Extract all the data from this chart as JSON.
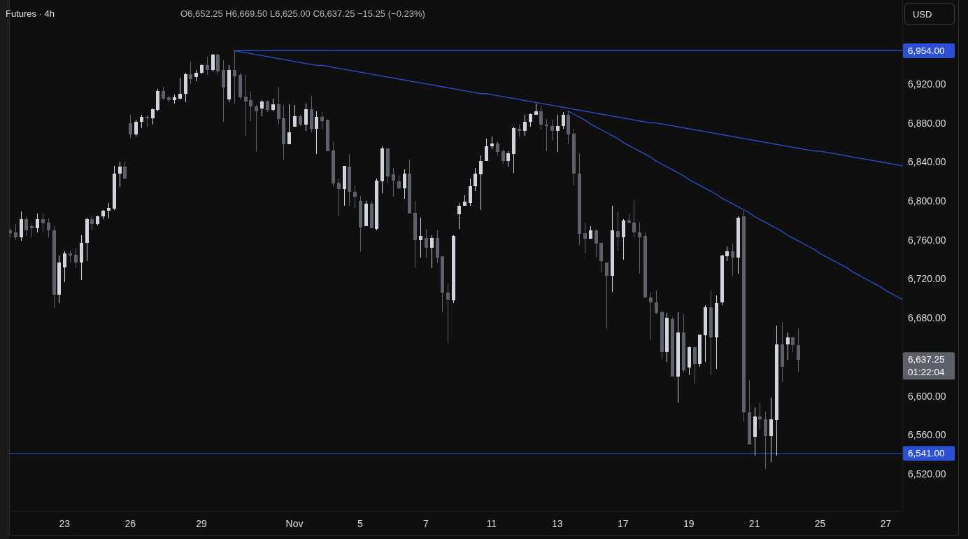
{
  "chart_data": {
    "type": "candlestick",
    "title": "Futures · 4h",
    "categories": [
      null,
      null,
      null,
      null,
      null,
      null,
      null,
      null,
      null,
      null,
      "23",
      null,
      null,
      null,
      null,
      null,
      null,
      null,
      null,
      null,
      null,
      null,
      "26",
      null,
      null,
      null,
      null,
      null,
      null,
      null,
      null,
      null,
      null,
      null,
      null,
      "29",
      null,
      null,
      null,
      null,
      null,
      null,
      null,
      null,
      null,
      null,
      null,
      null,
      null,
      null,
      null,
      null,
      "Nov",
      null,
      null,
      null,
      null,
      null,
      null,
      null,
      null,
      null,
      null,
      null,
      "5",
      null,
      null,
      null,
      null,
      null,
      null,
      null,
      null,
      null,
      null,
      null,
      "7",
      null,
      null,
      null,
      null,
      null,
      null,
      null,
      null,
      null,
      null,
      null,
      "11",
      null,
      null,
      null,
      null,
      null,
      null,
      null,
      null,
      null,
      null,
      null,
      "13",
      null,
      null,
      null,
      null,
      null,
      null,
      null,
      null,
      null,
      null,
      null,
      "17",
      null,
      null,
      null,
      null,
      null,
      null,
      null,
      null,
      null,
      null,
      null,
      "19",
      null,
      null,
      null,
      null,
      null,
      null,
      null,
      null,
      null,
      null,
      null,
      "21",
      null,
      null,
      null,
      null,
      null,
      null,
      null,
      null,
      null,
      null,
      null,
      "25",
      null,
      null,
      null,
      null,
      null,
      null,
      null,
      null,
      null,
      null,
      null,
      "27",
      null,
      null,
      null
    ],
    "ohlc": [
      [
        6770,
        6772,
        6763,
        6767
      ],
      [
        6768,
        6776,
        6760,
        6763
      ],
      [
        6763,
        6789,
        6759,
        6781
      ],
      [
        6781,
        6784,
        6764,
        6770
      ],
      [
        6774,
        6777,
        6763,
        6772
      ],
      [
        6772,
        6787,
        6768,
        6781
      ],
      [
        6781,
        6788,
        6768,
        6777
      ],
      [
        6778,
        6782,
        6763,
        6770
      ],
      [
        6770,
        6774,
        6690,
        6704
      ],
      [
        6704,
        6744,
        6695,
        6737
      ],
      [
        6732,
        6748,
        6717,
        6746
      ],
      [
        6746,
        6749,
        6737,
        6744
      ],
      [
        6745,
        6751,
        6732,
        6737
      ],
      [
        6737,
        6765,
        6719,
        6757
      ],
      [
        6757,
        6783,
        6738,
        6781
      ],
      [
        6781,
        6785,
        6770,
        6776
      ],
      [
        6776,
        6785,
        6775,
        6784
      ],
      [
        6784,
        6791,
        6781,
        6790
      ],
      [
        6790,
        6798,
        6782,
        6793
      ],
      [
        6792,
        6836,
        6791,
        6828
      ],
      [
        6828,
        6840,
        6814,
        6835
      ],
      [
        6835,
        6840,
        6822,
        6823
      ],
      [
        6880,
        6888,
        6864,
        6868
      ],
      [
        6868,
        6883,
        6866,
        6881
      ],
      [
        6881,
        6888,
        6875,
        6886
      ],
      [
        6886,
        6888,
        6876,
        6885
      ],
      [
        6885,
        6895,
        6878,
        6894
      ],
      [
        6893,
        6915,
        6892,
        6913
      ],
      [
        6913,
        6917,
        6904,
        6905
      ],
      [
        6906,
        6908,
        6901,
        6903
      ],
      [
        6903,
        6909,
        6900,
        6906
      ],
      [
        6905,
        6926,
        6904,
        6910
      ],
      [
        6910,
        6931,
        6901,
        6930
      ],
      [
        6930,
        6943,
        6920,
        6925
      ],
      [
        6927,
        6934,
        6923,
        6931
      ],
      [
        6931,
        6940,
        6930,
        6939
      ],
      [
        6939,
        6948,
        6929,
        6934
      ],
      [
        6934,
        6951,
        6933,
        6950
      ],
      [
        6950,
        6951,
        6929,
        6933
      ],
      [
        6934,
        6944,
        6881,
        6916
      ],
      [
        6904,
        6939,
        6901,
        6934
      ],
      [
        6934,
        6954,
        6900,
        6928
      ],
      [
        6929,
        6931,
        6904,
        6906
      ],
      [
        6907,
        6929,
        6866,
        6902
      ],
      [
        6903,
        6912,
        6882,
        6897
      ],
      [
        6897,
        6898,
        6850,
        6892
      ],
      [
        6895,
        6903,
        6887,
        6902
      ],
      [
        6902,
        6903,
        6891,
        6893
      ],
      [
        6893,
        6905,
        6892,
        6899
      ],
      [
        6899,
        6917,
        6878,
        6884
      ],
      [
        6885,
        6898,
        6842,
        6858
      ],
      [
        6858,
        6899,
        6858,
        6870
      ],
      [
        6876,
        6898,
        6876,
        6887
      ],
      [
        6887,
        6888,
        6877,
        6878
      ],
      [
        6878,
        6900,
        6872,
        6894
      ],
      [
        6894,
        6908,
        6870,
        6874
      ],
      [
        6874,
        6892,
        6848,
        6886
      ],
      [
        6886,
        6891,
        6874,
        6882
      ],
      [
        6883,
        6883,
        6851,
        6851
      ],
      [
        6852,
        6861,
        6814,
        6818
      ],
      [
        6819,
        6823,
        6785,
        6812
      ],
      [
        6812,
        6836,
        6795,
        6836
      ],
      [
        6835,
        6848,
        6795,
        6809
      ],
      [
        6809,
        6815,
        6793,
        6804
      ],
      [
        6800,
        6805,
        6748,
        6773
      ],
      [
        6774,
        6800,
        6774,
        6797
      ],
      [
        6797,
        6800,
        6772,
        6772
      ],
      [
        6771,
        6823,
        6770,
        6821
      ],
      [
        6820,
        6856,
        6808,
        6854
      ],
      [
        6854,
        6854,
        6819,
        6825
      ],
      [
        6827,
        6834,
        6804,
        6821
      ],
      [
        6820,
        6826,
        6812,
        6813
      ],
      [
        6813,
        6832,
        6802,
        6828
      ],
      [
        6828,
        6842,
        6787,
        6787
      ],
      [
        6788,
        6800,
        6732,
        6760
      ],
      [
        6760,
        6783,
        6742,
        6764
      ],
      [
        6762,
        6771,
        6742,
        6752
      ],
      [
        6752,
        6765,
        6731,
        6762
      ],
      [
        6762,
        6770,
        6736,
        6742
      ],
      [
        6743,
        6743,
        6686,
        6706
      ],
      [
        6706,
        6715,
        6654,
        6699
      ],
      [
        6698,
        6765,
        6695,
        6764
      ],
      [
        6786,
        6798,
        6771,
        6795
      ],
      [
        6795,
        6806,
        6795,
        6799
      ],
      [
        6798,
        6823,
        6795,
        6815
      ],
      [
        6815,
        6834,
        6810,
        6828
      ],
      [
        6827,
        6847,
        6791,
        6841
      ],
      [
        6841,
        6864,
        6841,
        6856
      ],
      [
        6856,
        6866,
        6853,
        6859
      ],
      [
        6859,
        6861,
        6846,
        6850
      ],
      [
        6851,
        6853,
        6838,
        6841
      ],
      [
        6841,
        6851,
        6835,
        6849
      ],
      [
        6848,
        6876,
        6829,
        6875
      ],
      [
        6874,
        6878,
        6866,
        6872
      ],
      [
        6872,
        6888,
        6867,
        6881
      ],
      [
        6881,
        6890,
        6876,
        6889
      ],
      [
        6888,
        6900,
        6888,
        6892
      ],
      [
        6892,
        6897,
        6873,
        6878
      ],
      [
        6878,
        6884,
        6851,
        6877
      ],
      [
        6877,
        6883,
        6862,
        6872
      ],
      [
        6872,
        6888,
        6850,
        6877
      ],
      [
        6877,
        6891,
        6874,
        6888
      ],
      [
        6888,
        6892,
        6858,
        6868
      ],
      [
        6869,
        6874,
        6816,
        6828
      ],
      [
        6828,
        6849,
        6755,
        6766
      ],
      [
        6767,
        6777,
        6746,
        6761
      ],
      [
        6761,
        6774,
        6761,
        6770
      ],
      [
        6770,
        6771,
        6742,
        6756
      ],
      [
        6757,
        6757,
        6727,
        6738
      ],
      [
        6737,
        6737,
        6669,
        6723
      ],
      [
        6723,
        6795,
        6707,
        6770
      ],
      [
        6769,
        6789,
        6749,
        6763
      ],
      [
        6763,
        6781,
        6740,
        6780
      ],
      [
        6780,
        6787,
        6777,
        6778
      ],
      [
        6778,
        6801,
        6763,
        6768
      ],
      [
        6768,
        6778,
        6725,
        6763
      ],
      [
        6764,
        6768,
        6701,
        6701
      ],
      [
        6701,
        6706,
        6658,
        6696
      ],
      [
        6696,
        6708,
        6684,
        6685
      ],
      [
        6686,
        6687,
        6638,
        6645
      ],
      [
        6645,
        6685,
        6635,
        6680
      ],
      [
        6679,
        6681,
        6620,
        6620
      ],
      [
        6620,
        6686,
        6593,
        6665
      ],
      [
        6665,
        6684,
        6624,
        6626
      ],
      [
        6629,
        6651,
        6621,
        6650
      ],
      [
        6650,
        6651,
        6613,
        6633
      ],
      [
        6633,
        6663,
        6630,
        6663
      ],
      [
        6662,
        6693,
        6635,
        6691
      ],
      [
        6691,
        6708,
        6621,
        6660
      ],
      [
        6660,
        6703,
        6628,
        6695
      ],
      [
        6696,
        6745,
        6693,
        6744
      ],
      [
        6743,
        6753,
        6738,
        6748
      ],
      [
        6748,
        6756,
        6723,
        6742
      ],
      [
        6742,
        6784,
        6725,
        6783
      ],
      [
        6784,
        6790,
        6574,
        6583
      ],
      [
        6583,
        6616,
        6550,
        6550
      ],
      [
        6558,
        6588,
        6539,
        6579
      ],
      [
        6579,
        6593,
        6566,
        6576
      ],
      [
        6576,
        6584,
        6525,
        6559
      ],
      [
        6559,
        6598,
        6532,
        6576
      ],
      [
        6575,
        6672,
        6539,
        6653
      ],
      [
        6653,
        6676,
        6614,
        6630
      ],
      [
        6653,
        6665,
        6637,
        6660
      ],
      [
        6660,
        6661,
        6645,
        6652
      ],
      [
        6652.25,
        6669.5,
        6625,
        6637.25
      ],
      null,
      null,
      null,
      null,
      null,
      null,
      null,
      null,
      null,
      null,
      null,
      null,
      null,
      null,
      null,
      null,
      null,
      null,
      null
    ],
    "colors": [
      "#5d606b",
      "#5d606b",
      "#d1d4dc",
      "#5d606b",
      "#5d606b",
      "#d1d4dc",
      "#5d606b",
      "#5d606b",
      "#5d606b",
      "#d1d4dc",
      "#d1d4dc",
      "#5d606b",
      "#5d606b",
      "#d1d4dc",
      "#d1d4dc",
      "#5d606b",
      "#d1d4dc",
      "#d1d4dc",
      "#d1d4dc",
      "#d1d4dc",
      "#d1d4dc",
      "#5d606b",
      "#5d606b",
      "#d1d4dc",
      "#d1d4dc",
      "#5d606b",
      "#d1d4dc",
      "#d1d4dc",
      "#5d606b",
      "#5d606b",
      "#d1d4dc",
      "#d1d4dc",
      "#d1d4dc",
      "#5d606b",
      "#d1d4dc",
      "#d1d4dc",
      "#5d606b",
      "#d1d4dc",
      "#5d606b",
      "#5d606b",
      "#d1d4dc",
      "#5d606b",
      "#5d606b",
      "#5d606b",
      "#5d606b",
      "#5d606b",
      "#d1d4dc",
      "#5d606b",
      "#d1d4dc",
      "#5d606b",
      "#5d606b",
      "#d1d4dc",
      "#d1d4dc",
      "#5d606b",
      "#d1d4dc",
      "#5d606b",
      "#d1d4dc",
      "#5d606b",
      "#5d606b",
      "#5d606b",
      "#5d606b",
      "#d1d4dc",
      "#5d606b",
      "#5d606b",
      "#5d606b",
      "#d1d4dc",
      "#5d606b",
      "#d1d4dc",
      "#d1d4dc",
      "#5d606b",
      "#5d606b",
      "#5d606b",
      "#d1d4dc",
      "#5d606b",
      "#5d606b",
      "#d1d4dc",
      "#5d606b",
      "#d1d4dc",
      "#5d606b",
      "#5d606b",
      "#5d606b",
      "#d1d4dc",
      "#d1d4dc",
      "#d1d4dc",
      "#d1d4dc",
      "#d1d4dc",
      "#d1d4dc",
      "#d1d4dc",
      "#d1d4dc",
      "#5d606b",
      "#5d606b",
      "#d1d4dc",
      "#d1d4dc",
      "#5d606b",
      "#d1d4dc",
      "#d1d4dc",
      "#d1d4dc",
      "#5d606b",
      "#5d606b",
      "#5d606b",
      "#d1d4dc",
      "#d1d4dc",
      "#5d606b",
      "#5d606b",
      "#5d606b",
      "#5d606b",
      "#d1d4dc",
      "#5d606b",
      "#5d606b",
      "#5d606b",
      "#d1d4dc",
      "#5d606b",
      "#d1d4dc",
      "#5d606b",
      "#5d606b",
      "#5d606b",
      "#5d606b",
      "#5d606b",
      "#5d606b",
      "#5d606b",
      "#d1d4dc",
      "#5d606b",
      "#d1d4dc",
      "#5d606b",
      "#d1d4dc",
      "#5d606b",
      "#d1d4dc",
      "#d1d4dc",
      "#5d606b",
      "#d1d4dc",
      "#d1d4dc",
      "#d1d4dc",
      "#5d606b",
      "#d1d4dc",
      "#5d606b",
      "#5d606b",
      "#d1d4dc",
      "#5d606b",
      "#5d606b",
      "#d1d4dc",
      "#d1d4dc",
      "#5d606b",
      "#d1d4dc",
      "#5d606b",
      "#5d606b",
      null,
      null,
      null,
      null,
      null,
      null,
      null,
      null,
      null,
      null,
      null,
      null,
      null,
      null,
      null,
      null,
      null,
      null,
      null
    ],
    "series": [
      {
        "type": "line",
        "name": "6,954.00",
        "color": "#2b50d6",
        "values": [
          null,
          null,
          null,
          null,
          null,
          null,
          null,
          null,
          null,
          null,
          null,
          null,
          null,
          null,
          null,
          null,
          null,
          null,
          null,
          null,
          null,
          null,
          null,
          null,
          null,
          null,
          null,
          null,
          null,
          null,
          null,
          null,
          null,
          null,
          null,
          null,
          null,
          null,
          null,
          null,
          null,
          6954,
          6954,
          6954,
          6954,
          6954,
          6954,
          6954,
          6954,
          6954,
          6954,
          6954,
          6954,
          6954,
          6954,
          6954,
          6954,
          6954,
          6954,
          6954,
          6954,
          6954,
          6954,
          6954,
          6954,
          6954,
          6954,
          6954,
          6954,
          6954,
          6954,
          6954,
          6954,
          6954,
          6954,
          6954,
          6954,
          6954,
          6954,
          6954,
          6954,
          6954,
          6954,
          6954,
          6954,
          6954,
          6954,
          6954,
          6954,
          6954,
          6954,
          6954,
          6954,
          6954,
          6954,
          6954,
          6954,
          6954,
          6954,
          6954,
          6954,
          6954,
          6954,
          6954,
          6954,
          6954,
          6954,
          6954,
          6954,
          6954,
          6954,
          6954,
          6954,
          6954,
          6954,
          6954,
          6954,
          6954,
          6954,
          6954,
          6954,
          6954,
          6954,
          6954,
          6954,
          6954,
          6954,
          6954,
          6954,
          6954,
          6954,
          6954,
          6954,
          6954,
          6954,
          6954,
          6954,
          6954,
          6954,
          6954,
          6954,
          6954,
          6954,
          6954,
          6954,
          6954,
          6954,
          6954,
          6954,
          6954,
          6954,
          6954,
          6954,
          6954,
          6954,
          6954,
          6954,
          6954,
          6954,
          6954,
          6954,
          6954,
          6954,
          6954
        ]
      },
      {
        "type": "line",
        "color": "#2b50d6",
        "values": [
          null,
          null,
          null,
          null,
          null,
          null,
          null,
          null,
          null,
          null,
          null,
          null,
          null,
          null,
          null,
          null,
          null,
          null,
          null,
          null,
          null,
          null,
          null,
          null,
          null,
          null,
          null,
          null,
          null,
          null,
          null,
          null,
          null,
          null,
          null,
          null,
          null,
          null,
          null,
          null,
          null,
          6954,
          6953,
          6952,
          6951,
          6950,
          6949,
          6948,
          6947,
          6946,
          6945,
          6944,
          6943,
          6942,
          6941,
          6940,
          6939,
          6939,
          6938,
          6937,
          6936,
          6935,
          6934,
          6933,
          6932,
          6931,
          6930,
          6929,
          6928,
          6927,
          6926,
          6925,
          6924,
          6923,
          6922,
          6921,
          6920,
          6919,
          6918,
          6917,
          6916,
          6915,
          6914,
          6913,
          6912,
          6911,
          6910,
          6910,
          6909,
          6908,
          6907,
          6906,
          6905,
          6904,
          6903,
          6902,
          6901,
          6900,
          6899,
          6898,
          6897,
          6896,
          6895,
          6894,
          6893,
          6892,
          6891,
          6890,
          6889,
          6888,
          6887,
          6886,
          6885,
          6884,
          6883,
          6882,
          6881,
          6880,
          6880,
          6879,
          6878,
          6877,
          6876,
          6875,
          6874,
          6873,
          6872,
          6871,
          6870,
          6869,
          6868,
          6867,
          6866,
          6865,
          6864,
          6863,
          6862,
          6861,
          6860,
          6859,
          6858,
          6857,
          6856,
          6855,
          6854,
          6853,
          6852,
          6851,
          6851,
          6850,
          6849,
          6848,
          6847,
          6846,
          6845,
          6844,
          6843,
          6842,
          6841,
          6840,
          6839,
          6838,
          6837,
          6836
        ]
      },
      {
        "type": "line",
        "color": "#2b50d6",
        "values": [
          null,
          null,
          null,
          null,
          null,
          null,
          null,
          null,
          null,
          null,
          null,
          null,
          null,
          null,
          null,
          null,
          null,
          null,
          null,
          null,
          null,
          null,
          null,
          null,
          null,
          null,
          null,
          null,
          null,
          null,
          null,
          null,
          null,
          null,
          null,
          null,
          null,
          null,
          null,
          null,
          null,
          null,
          null,
          null,
          null,
          null,
          null,
          null,
          null,
          null,
          null,
          null,
          null,
          null,
          null,
          null,
          null,
          null,
          null,
          null,
          null,
          null,
          null,
          null,
          null,
          null,
          null,
          null,
          null,
          null,
          null,
          null,
          null,
          null,
          null,
          null,
          null,
          null,
          null,
          null,
          null,
          null,
          null,
          null,
          null,
          null,
          null,
          null,
          null,
          null,
          null,
          null,
          null,
          null,
          null,
          null,
          null,
          null,
          null,
          null,
          null,
          null,
          6892,
          6889,
          6886,
          6883,
          6879,
          6876,
          6873,
          6870,
          6867,
          6864,
          6860,
          6857,
          6854,
          6851,
          6848,
          6845,
          6841,
          6838,
          6835,
          6832,
          6829,
          6826,
          6822,
          6819,
          6816,
          6813,
          6810,
          6807,
          6803,
          6800,
          6797,
          6794,
          6791,
          6788,
          6784,
          6781,
          6778,
          6775,
          6772,
          6769,
          6765,
          6762,
          6759,
          6756,
          6753,
          6750,
          6746,
          6743,
          6740,
          6737,
          6734,
          6731,
          6727,
          6724,
          6721,
          6718,
          6715,
          6712,
          6708,
          6705,
          6702,
          6699
        ]
      }
    ],
    "ylim": [
      6482,
      7006
    ],
    "yticks": [
      {
        "value": 6520,
        "label": "6,520.00"
      },
      {
        "value": 6560,
        "label": "6,560.00"
      },
      {
        "value": 6600,
        "label": "6,600.00"
      },
      {
        "value": 6680,
        "label": "6,680.00"
      },
      {
        "value": 6720,
        "label": "6,720.00"
      },
      {
        "value": 6760,
        "label": "6,760.00"
      },
      {
        "value": 6800,
        "label": "6,800.00"
      },
      {
        "value": 6840,
        "label": "6,840.00"
      },
      {
        "value": 6880,
        "label": "6,880.00"
      },
      {
        "value": 6920,
        "label": "6,920.00"
      }
    ],
    "ref_lines": [
      {
        "axis": "y",
        "value": 6541,
        "label": "6,541.00",
        "color": "#2b50d6"
      }
    ],
    "annotations": [
      "O6,652.25 H6,669.50 L6,625.00 C6,637.25 −15.25 (−0.23%)",
      "USD",
      "6,637.25",
      "01:22:04"
    ]
  }
}
